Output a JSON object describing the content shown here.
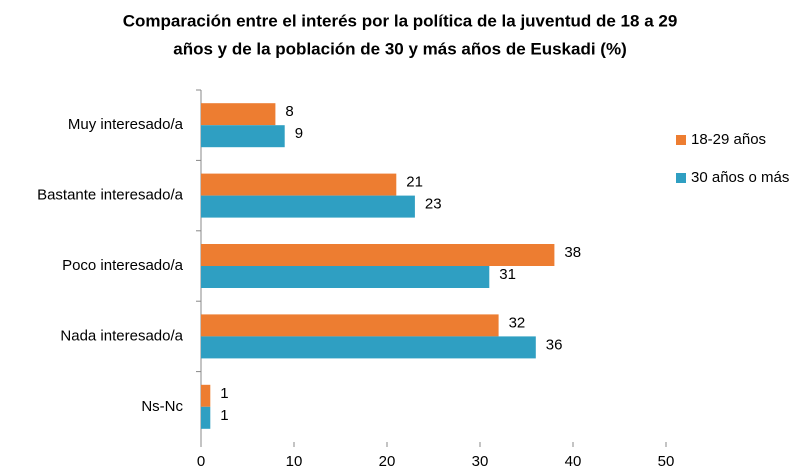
{
  "chart_data": {
    "type": "bar",
    "orientation": "horizontal",
    "title": [
      "Comparación  entre el interés por la política de la juventud de 18 a 29",
      "años y de la población  de 30 y más años de Euskadi (%)"
    ],
    "categories": [
      "Muy interesado/a",
      "Bastante interesado/a",
      "Poco interesado/a",
      "Nada interesado/a",
      "Ns-Nc"
    ],
    "series": [
      {
        "name": "18-29 años",
        "color": "#ed7d31",
        "values": [
          8,
          21,
          38,
          32,
          1
        ]
      },
      {
        "name": "30 años o más",
        "color": "#2f9fc2",
        "values": [
          9,
          23,
          31,
          36,
          1
        ]
      }
    ],
    "xlim": [
      0,
      50
    ],
    "xticks": [
      0,
      10,
      20,
      30,
      40,
      50
    ],
    "grid": false,
    "legend": "right"
  }
}
